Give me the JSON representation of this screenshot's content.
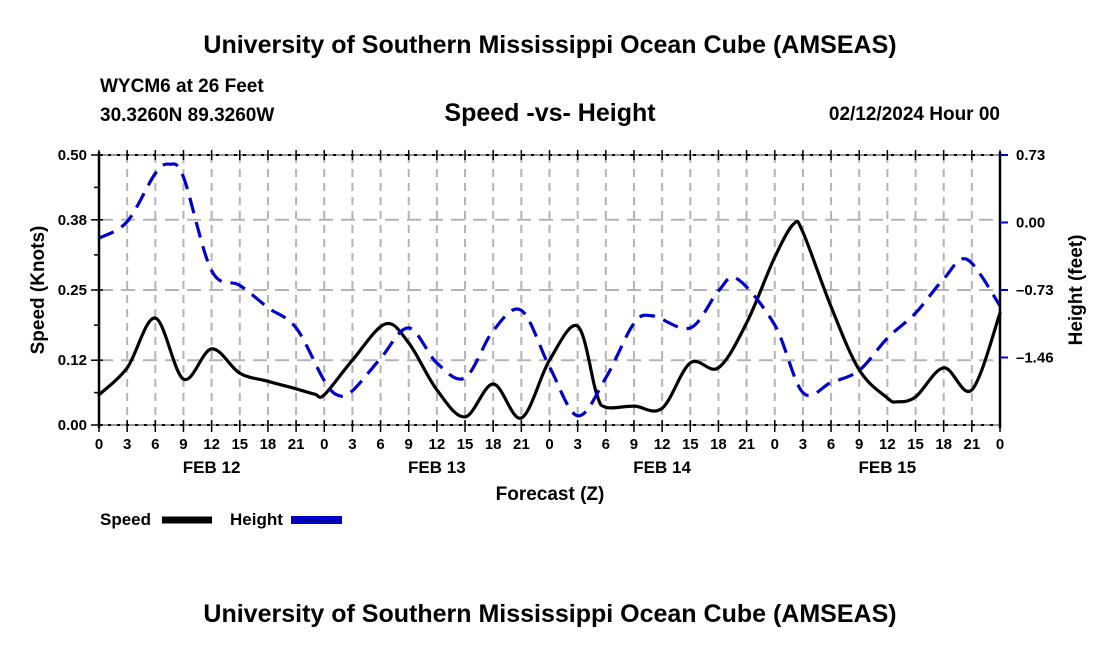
{
  "header": {
    "top_title": "University of Southern Mississippi Ocean Cube (AMSEAS)",
    "station_line": "WYCM6 at 26 Feet",
    "coords_line": "30.3260N  89.3260W",
    "datetime_line": "02/12/2024 Hour 00",
    "bottom_title": "University of Southern Mississippi Ocean Cube (AMSEAS)"
  },
  "colors": {
    "speed": "#000000",
    "height": "#0000cc",
    "grid": "#b4b4b4"
  },
  "chart_data": {
    "type": "line",
    "title": "Speed -vs- Height",
    "xlabel": "Forecast (Z)",
    "ylabel": "Speed (Knots)",
    "y2label": "Height (feet)",
    "xlim": [
      0,
      96
    ],
    "ylim": [
      0.0,
      0.5
    ],
    "y2lim": [
      -2.19,
      0.73
    ],
    "grid": true,
    "legend_position": "bottom-left",
    "x_tick_labels": [
      "0",
      "3",
      "6",
      "9",
      "12",
      "15",
      "18",
      "21",
      "0",
      "3",
      "6",
      "9",
      "12",
      "15",
      "18",
      "21",
      "0",
      "3",
      "6",
      "9",
      "12",
      "15",
      "18",
      "21",
      "0",
      "3",
      "6",
      "9",
      "12",
      "15",
      "18",
      "21",
      "0"
    ],
    "day_labels": [
      {
        "label": "FEB 12",
        "hour": 12
      },
      {
        "label": "FEB 13",
        "hour": 36
      },
      {
        "label": "FEB 14",
        "hour": 60
      },
      {
        "label": "FEB 15",
        "hour": 84
      }
    ],
    "y_ticks": [
      0.0,
      0.12,
      0.25,
      0.38,
      0.5
    ],
    "y_tick_labels": [
      "0.00",
      "0.12",
      "0.25",
      "0.38",
      "0.50"
    ],
    "y2_ticks": [
      -1.46,
      -0.73,
      0.0,
      0.73
    ],
    "y2_tick_labels": [
      "-1.46",
      "-0.73",
      "0.00",
      "0.73"
    ],
    "series": [
      {
        "name": "Speed",
        "axis": "left",
        "style": "solid",
        "x": [
          0,
          3,
          6,
          9,
          12,
          15,
          18,
          21,
          23,
          24,
          27,
          30.5,
          33,
          36,
          39,
          42,
          45,
          48,
          51,
          53,
          54,
          57,
          60,
          63,
          66,
          69,
          72,
          74,
          75,
          78,
          81,
          84,
          85,
          87,
          90,
          93,
          96
        ],
        "values": [
          0.056,
          0.106,
          0.198,
          0.085,
          0.141,
          0.096,
          0.081,
          0.067,
          0.057,
          0.056,
          0.12,
          0.187,
          0.152,
          0.065,
          0.015,
          0.076,
          0.013,
          0.12,
          0.183,
          0.059,
          0.033,
          0.035,
          0.031,
          0.115,
          0.106,
          0.189,
          0.311,
          0.372,
          0.357,
          0.219,
          0.102,
          0.05,
          0.043,
          0.052,
          0.106,
          0.065,
          0.207
        ]
      },
      {
        "name": "Height",
        "axis": "right",
        "style": "dashed",
        "x": [
          0,
          3,
          6,
          7.5,
          9,
          12,
          15,
          18,
          21,
          24,
          25.5,
          27,
          30,
          33,
          36,
          39,
          42,
          45,
          48,
          51,
          54,
          57,
          59,
          63,
          66,
          68,
          72,
          75,
          78,
          81,
          84,
          87,
          90,
          92.5,
          96
        ],
        "values": [
          -0.17,
          0.01,
          0.53,
          0.63,
          0.49,
          -0.52,
          -0.68,
          -0.92,
          -1.14,
          -1.71,
          -1.87,
          -1.82,
          -1.47,
          -1.14,
          -1.52,
          -1.68,
          -1.17,
          -0.95,
          -1.56,
          -2.09,
          -1.68,
          -1.09,
          -1.01,
          -1.14,
          -0.74,
          -0.61,
          -1.11,
          -1.84,
          -1.73,
          -1.6,
          -1.25,
          -0.98,
          -0.61,
          -0.4,
          -0.9
        ]
      }
    ]
  }
}
